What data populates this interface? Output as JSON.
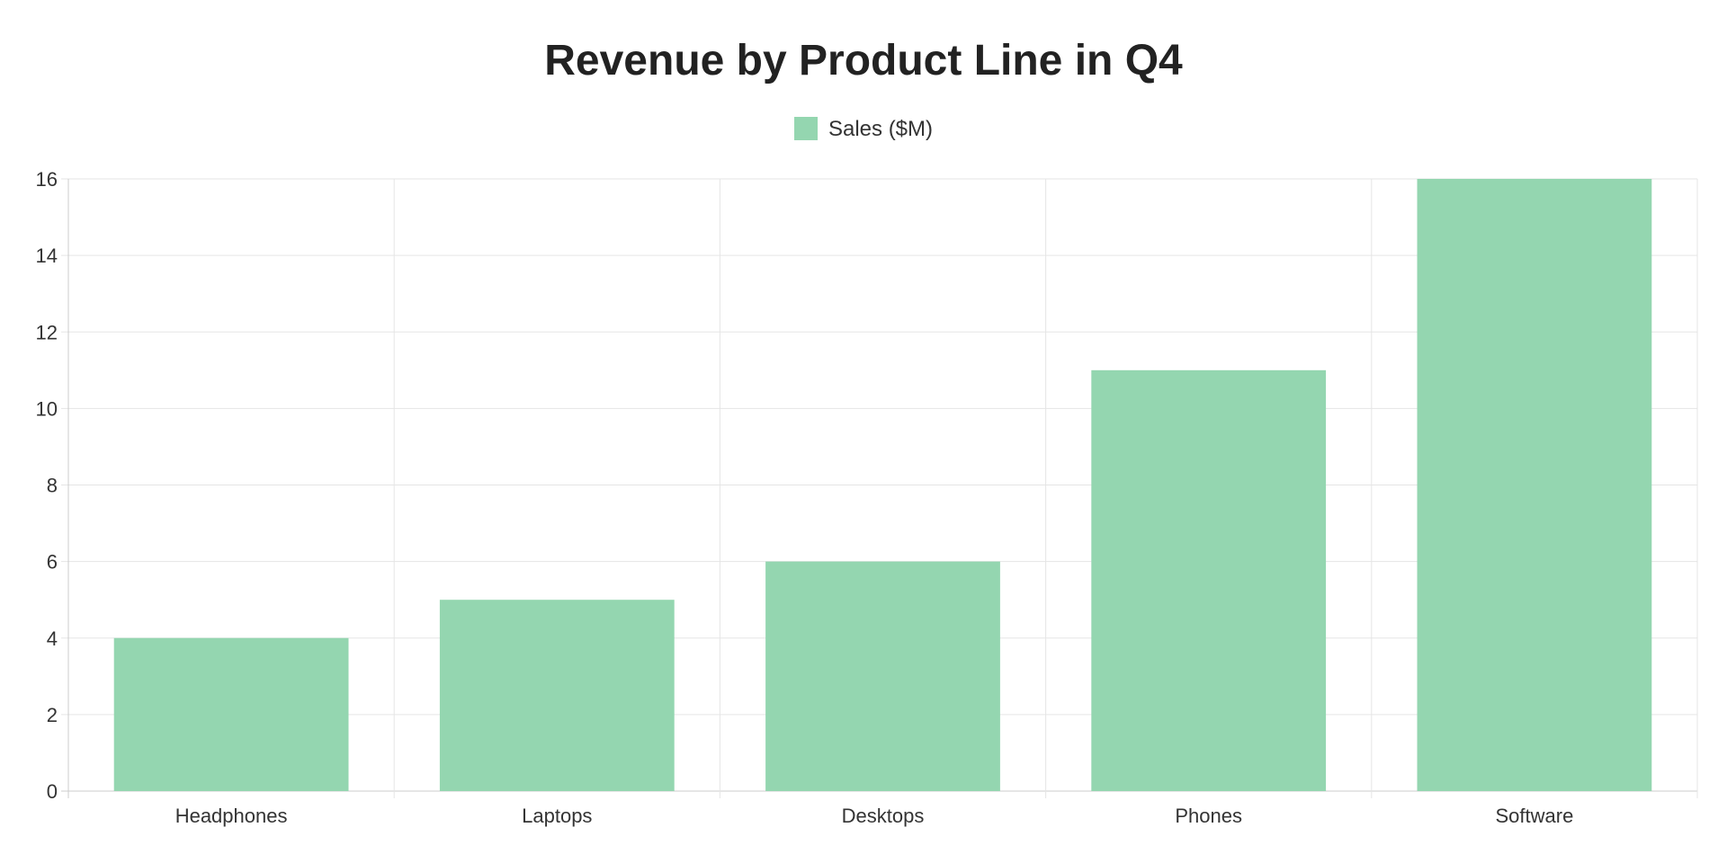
{
  "chart_data": {
    "type": "bar",
    "title": "Revenue by Product Line in Q4",
    "categories": [
      "Headphones",
      "Laptops",
      "Desktops",
      "Phones",
      "Software"
    ],
    "series": [
      {
        "name": "Sales ($M)",
        "values": [
          4,
          5,
          6,
          11,
          16
        ],
        "color": "#94d6b0"
      }
    ],
    "xlabel": "",
    "ylabel": "",
    "ylim": [
      0,
      16
    ],
    "yticks": [
      0,
      2,
      4,
      6,
      8,
      10,
      12,
      14,
      16
    ],
    "grid": true,
    "legend_position": "top"
  }
}
